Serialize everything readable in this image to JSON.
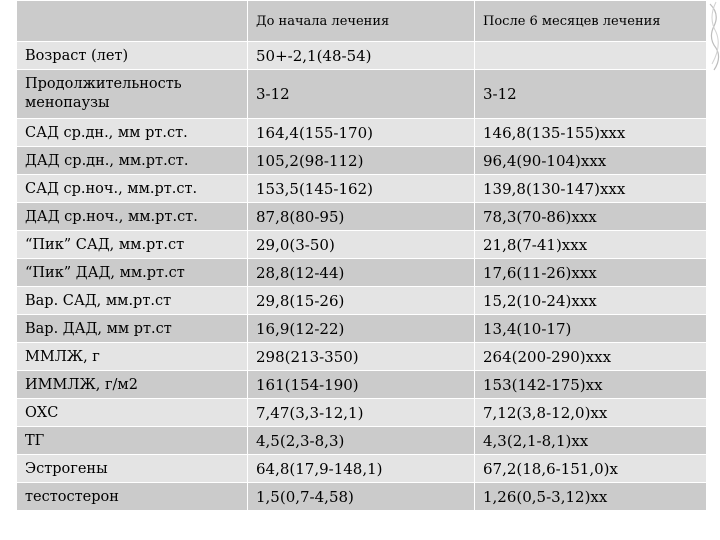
{
  "table": {
    "headers": [
      "",
      "До начала лечения",
      "После 6 месяцев лечения"
    ],
    "rows": [
      {
        "label": "Возраст (лет)",
        "before": "50+-2,1(48-54)",
        "after": ""
      },
      {
        "label": "Продолжительность менопаузы",
        "before": "3-12",
        "after": "3-12"
      },
      {
        "label": "САД ср.дн., мм рт.ст.",
        "before": "164,4(155-170)",
        "after": "146,8(135-155)ххх"
      },
      {
        "label": "ДАД ср.дн., мм.рт.ст.",
        "before": "105,2(98-112)",
        "after": "96,4(90-104)ххх"
      },
      {
        "label": "САД ср.ноч., мм.рт.ст.",
        "before": "153,5(145-162)",
        "after": "139,8(130-147)ххх"
      },
      {
        "label": "ДАД ср.ноч., мм.рт.ст.",
        "before": "87,8(80-95)",
        "after": "78,3(70-86)ххх"
      },
      {
        "label": "“Пик” САД, мм.рт.ст",
        "before": "29,0(3-50)",
        "after": "21,8(7-41)ххх"
      },
      {
        "label": "“Пик” ДАД, мм.рт.ст",
        "before": "28,8(12-44)",
        "after": "17,6(11-26)ххх"
      },
      {
        "label": "Вар. САД, мм.рт.ст",
        "before": "29,8(15-26)",
        "after": "15,2(10-24)ххх"
      },
      {
        "label": "Вар. ДАД, мм рт.ст",
        "before": "16,9(12-22)",
        "after": "13,4(10-17)"
      },
      {
        "label": "ММЛЖ, г",
        "before": "298(213-350)",
        "after": "264(200-290)ххх"
      },
      {
        "label": "ИММЛЖ, г/м2",
        "before": "161(154-190)",
        "after": "153(142-175)хх"
      },
      {
        "label": "ОХС",
        "before": "7,47(3,3-12,1)",
        "after": "7,12(3,8-12,0)хх"
      },
      {
        "label": "ТГ",
        "before": "4,5(2,3-8,3)",
        "after": "4,3(2,1-8,1)хх"
      },
      {
        "label": "Эстрогены",
        "before": "64,8(17,9-148,1)",
        "after": "67,2(18,6-151,0)х"
      },
      {
        "label": "тестостерон",
        "before": "1,5(0,7-4,58)",
        "after": "1,26(0,5-3,12)хх"
      }
    ]
  },
  "colors": {
    "header_bg": "#cbcbcb",
    "row_dark": "#cbcbcb",
    "row_light": "#e4e4e4",
    "grid_lines": "#ffffff"
  }
}
